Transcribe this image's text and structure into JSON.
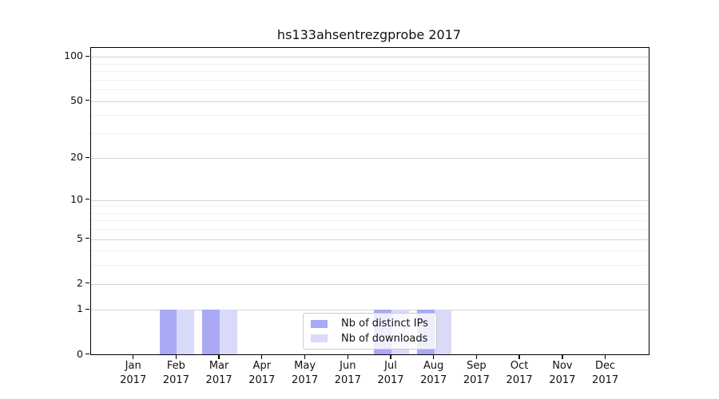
{
  "chart_data": {
    "type": "bar",
    "title": "hs133ahsentrezgprobe 2017",
    "year": "2017",
    "categories": [
      "Jan",
      "Feb",
      "Mar",
      "Apr",
      "May",
      "Jun",
      "Jul",
      "Aug",
      "Sep",
      "Oct",
      "Nov",
      "Dec"
    ],
    "series": [
      {
        "name": "Nb of distinct IPs",
        "color": "#a9a9f5",
        "values": [
          0,
          1,
          1,
          0,
          0,
          0,
          1,
          1,
          0,
          0,
          0,
          0
        ]
      },
      {
        "name": "Nb of downloads",
        "color": "#d9d9fa",
        "values": [
          0,
          1,
          1,
          0,
          0,
          0,
          1,
          1,
          0,
          0,
          0,
          0
        ]
      }
    ],
    "yscale": "log1p",
    "ylim": [
      0,
      115
    ],
    "y_ticks": [
      0,
      1,
      2,
      5,
      10,
      20,
      50,
      100
    ],
    "grid": "horizontal, minor log lines",
    "legend": {
      "position": "inside-bottom-center",
      "items": [
        "Nb of distinct IPs",
        "Nb of downloads"
      ]
    },
    "colors": {
      "grid_major": "#d4d4d4",
      "grid_minor": "#f0f0f0",
      "axis": "#000000",
      "text": "#111111"
    }
  }
}
